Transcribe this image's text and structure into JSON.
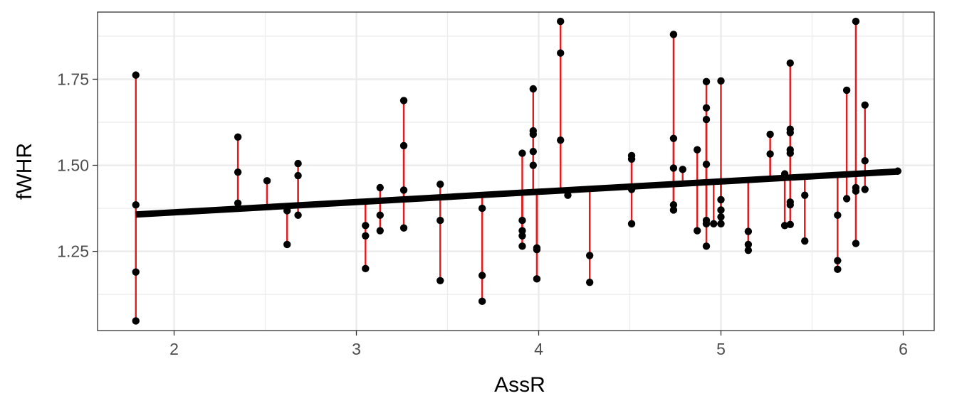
{
  "chart_data": {
    "type": "scatter",
    "title": "",
    "xlabel": "AssR",
    "ylabel": "fWHR",
    "xlim": [
      1.58,
      6.17
    ],
    "ylim": [
      1.02,
      1.945
    ],
    "x_ticks": [
      2,
      3,
      4,
      5,
      6
    ],
    "y_ticks": [
      1.25,
      1.5,
      1.75
    ],
    "x_tick_labels": [
      "2",
      "3",
      "4",
      "5",
      "6"
    ],
    "y_tick_labels": [
      "1.25",
      "1.50",
      "1.75"
    ],
    "grid": true,
    "legend": "none",
    "colors": {
      "points": "#000000",
      "fit_line": "#000000",
      "residuals": "#e41a1c",
      "grid": "#ebebeb",
      "panel_border": "#333333"
    },
    "fit_line": {
      "x": [
        1.79,
        5.97
      ],
      "y": [
        1.357,
        1.482
      ]
    },
    "points": [
      {
        "x": 1.79,
        "y": 1.762
      },
      {
        "x": 1.79,
        "y": 1.385
      },
      {
        "x": 1.79,
        "y": 1.19
      },
      {
        "x": 1.79,
        "y": 1.048
      },
      {
        "x": 2.35,
        "y": 1.582
      },
      {
        "x": 2.35,
        "y": 1.48
      },
      {
        "x": 2.35,
        "y": 1.39
      },
      {
        "x": 2.51,
        "y": 1.455
      },
      {
        "x": 2.62,
        "y": 1.368
      },
      {
        "x": 2.62,
        "y": 1.27
      },
      {
        "x": 2.68,
        "y": 1.505
      },
      {
        "x": 2.68,
        "y": 1.47
      },
      {
        "x": 2.68,
        "y": 1.355
      },
      {
        "x": 3.05,
        "y": 1.325
      },
      {
        "x": 3.05,
        "y": 1.295
      },
      {
        "x": 3.05,
        "y": 1.2
      },
      {
        "x": 3.13,
        "y": 1.435
      },
      {
        "x": 3.13,
        "y": 1.355
      },
      {
        "x": 3.13,
        "y": 1.31
      },
      {
        "x": 3.26,
        "y": 1.688
      },
      {
        "x": 3.26,
        "y": 1.557
      },
      {
        "x": 3.26,
        "y": 1.428
      },
      {
        "x": 3.26,
        "y": 1.318
      },
      {
        "x": 3.46,
        "y": 1.445
      },
      {
        "x": 3.46,
        "y": 1.34
      },
      {
        "x": 3.46,
        "y": 1.165
      },
      {
        "x": 3.69,
        "y": 1.375
      },
      {
        "x": 3.69,
        "y": 1.18
      },
      {
        "x": 3.69,
        "y": 1.105
      },
      {
        "x": 3.91,
        "y": 1.535
      },
      {
        "x": 3.91,
        "y": 1.34
      },
      {
        "x": 3.91,
        "y": 1.31
      },
      {
        "x": 3.91,
        "y": 1.295
      },
      {
        "x": 3.91,
        "y": 1.265
      },
      {
        "x": 3.97,
        "y": 1.722
      },
      {
        "x": 3.97,
        "y": 1.6
      },
      {
        "x": 3.97,
        "y": 1.59
      },
      {
        "x": 3.97,
        "y": 1.54
      },
      {
        "x": 3.97,
        "y": 1.5
      },
      {
        "x": 3.99,
        "y": 1.26
      },
      {
        "x": 3.99,
        "y": 1.255
      },
      {
        "x": 3.99,
        "y": 1.17
      },
      {
        "x": 4.12,
        "y": 1.918
      },
      {
        "x": 4.12,
        "y": 1.826
      },
      {
        "x": 4.12,
        "y": 1.573
      },
      {
        "x": 4.16,
        "y": 1.413
      },
      {
        "x": 4.28,
        "y": 1.238
      },
      {
        "x": 4.28,
        "y": 1.16
      },
      {
        "x": 4.51,
        "y": 1.528
      },
      {
        "x": 4.51,
        "y": 1.518
      },
      {
        "x": 4.51,
        "y": 1.43
      },
      {
        "x": 4.51,
        "y": 1.33
      },
      {
        "x": 4.74,
        "y": 1.88
      },
      {
        "x": 4.74,
        "y": 1.578
      },
      {
        "x": 4.74,
        "y": 1.492
      },
      {
        "x": 4.74,
        "y": 1.385
      },
      {
        "x": 4.74,
        "y": 1.37
      },
      {
        "x": 4.79,
        "y": 1.488
      },
      {
        "x": 4.87,
        "y": 1.545
      },
      {
        "x": 4.87,
        "y": 1.31
      },
      {
        "x": 4.92,
        "y": 1.743
      },
      {
        "x": 4.92,
        "y": 1.667
      },
      {
        "x": 4.92,
        "y": 1.633
      },
      {
        "x": 4.92,
        "y": 1.503
      },
      {
        "x": 4.92,
        "y": 1.34
      },
      {
        "x": 4.92,
        "y": 1.33
      },
      {
        "x": 4.92,
        "y": 1.265
      },
      {
        "x": 4.96,
        "y": 1.33
      },
      {
        "x": 5.0,
        "y": 1.745
      },
      {
        "x": 5.0,
        "y": 1.4
      },
      {
        "x": 5.0,
        "y": 1.37
      },
      {
        "x": 5.0,
        "y": 1.35
      },
      {
        "x": 5.0,
        "y": 1.33
      },
      {
        "x": 5.15,
        "y": 1.308
      },
      {
        "x": 5.15,
        "y": 1.27
      },
      {
        "x": 5.15,
        "y": 1.253
      },
      {
        "x": 5.27,
        "y": 1.59
      },
      {
        "x": 5.27,
        "y": 1.533
      },
      {
        "x": 5.35,
        "y": 1.475
      },
      {
        "x": 5.35,
        "y": 1.325
      },
      {
        "x": 5.38,
        "y": 1.797
      },
      {
        "x": 5.38,
        "y": 1.605
      },
      {
        "x": 5.38,
        "y": 1.595
      },
      {
        "x": 5.38,
        "y": 1.545
      },
      {
        "x": 5.38,
        "y": 1.535
      },
      {
        "x": 5.38,
        "y": 1.393
      },
      {
        "x": 5.38,
        "y": 1.385
      },
      {
        "x": 5.38,
        "y": 1.328
      },
      {
        "x": 5.46,
        "y": 1.413
      },
      {
        "x": 5.46,
        "y": 1.28
      },
      {
        "x": 5.64,
        "y": 1.355
      },
      {
        "x": 5.64,
        "y": 1.223
      },
      {
        "x": 5.64,
        "y": 1.198
      },
      {
        "x": 5.69,
        "y": 1.718
      },
      {
        "x": 5.69,
        "y": 1.403
      },
      {
        "x": 5.74,
        "y": 1.918
      },
      {
        "x": 5.74,
        "y": 1.435
      },
      {
        "x": 5.74,
        "y": 1.425
      },
      {
        "x": 5.74,
        "y": 1.273
      },
      {
        "x": 5.79,
        "y": 1.675
      },
      {
        "x": 5.79,
        "y": 1.513
      },
      {
        "x": 5.79,
        "y": 1.43
      },
      {
        "x": 5.97,
        "y": 1.483
      }
    ]
  }
}
